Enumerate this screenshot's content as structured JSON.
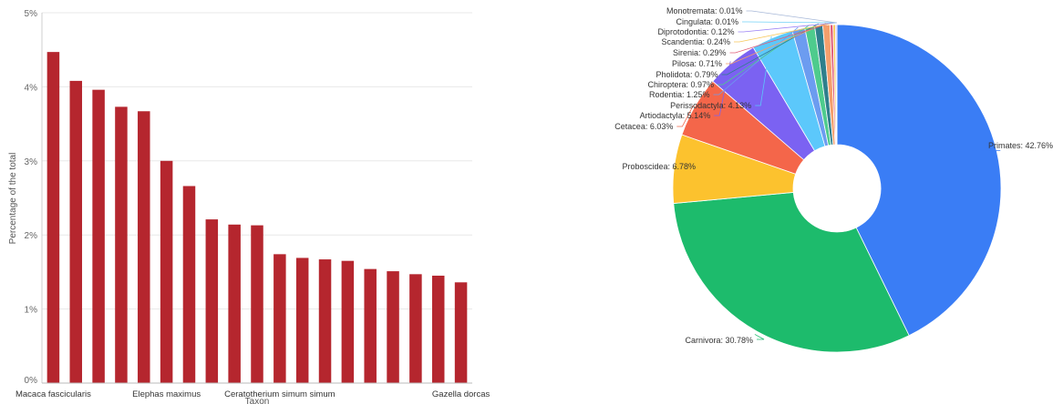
{
  "chart_data": [
    {
      "type": "bar",
      "xlabel": "Taxon",
      "ylabel": "Percentage of the total",
      "ylim": [
        0,
        5
      ],
      "yticks": [
        "0%",
        "1%",
        "2%",
        "3%",
        "4%",
        "5%"
      ],
      "bar_color": "#b5262e",
      "grid": true,
      "categories": [
        "Macaca fascicularis",
        "",
        "",
        "",
        "",
        "Elephas maximus",
        "",
        "",
        "",
        "",
        "Ceratotherium simum simum",
        "",
        "",
        "",
        "",
        "",
        "",
        "",
        "Gazella dorcas"
      ],
      "values": [
        4.47,
        4.08,
        3.96,
        3.73,
        3.67,
        3.0,
        2.66,
        2.21,
        2.14,
        2.13,
        1.74,
        1.69,
        1.67,
        1.65,
        1.54,
        1.51,
        1.47,
        1.45,
        1.36
      ]
    },
    {
      "type": "pie",
      "donut": true,
      "slices": [
        {
          "label": "Primates: 42.76%",
          "value": 42.76,
          "color": "#3a7df5"
        },
        {
          "label": "Carnivora: 30.78%",
          "value": 30.78,
          "color": "#1dbb6c"
        },
        {
          "label": "Proboscidea: 6.78%",
          "value": 6.78,
          "color": "#fcc22e"
        },
        {
          "label": "Cetacea: 6.03%",
          "value": 6.03,
          "color": "#f4664a"
        },
        {
          "label": "Artiodactyla: 5.14%",
          "value": 5.14,
          "color": "#7b62f2"
        },
        {
          "label": "Perissodactyla: 4.13%",
          "value": 4.13,
          "color": "#5cc8fb"
        },
        {
          "label": "Rodentia: 1.25%",
          "value": 1.25,
          "color": "#6c9cf0"
        },
        {
          "label": "Chiroptera: 0.97%",
          "value": 0.97,
          "color": "#4ecb8d"
        },
        {
          "label": "Pholidota: 0.79%",
          "value": 0.79,
          "color": "#2f7f8c"
        },
        {
          "label": "Pilosa: 0.71%",
          "value": 0.71,
          "color": "#f59f6c"
        },
        {
          "label": "Sirenia: 0.29%",
          "value": 0.29,
          "color": "#e05c79"
        },
        {
          "label": "Scandentia: 0.24%",
          "value": 0.24,
          "color": "#f7c85b"
        },
        {
          "label": "Diprotodontia: 0.12%",
          "value": 0.12,
          "color": "#9b82f5"
        },
        {
          "label": "Cingulata: 0.01%",
          "value": 0.01,
          "color": "#72d2f7"
        },
        {
          "label": "Monotremata: 0.01%",
          "value": 0.01,
          "color": "#a7b8d8"
        }
      ]
    }
  ]
}
